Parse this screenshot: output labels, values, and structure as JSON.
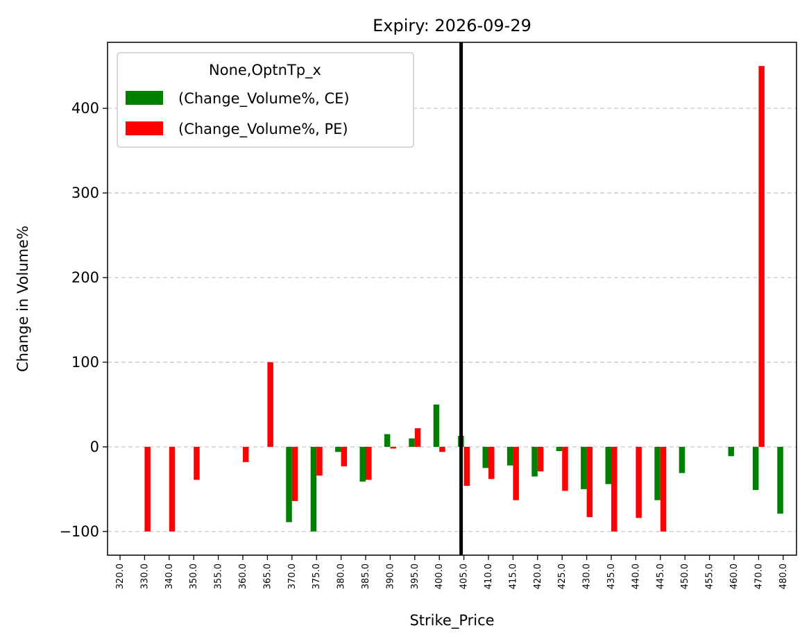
{
  "chart_data": {
    "type": "bar",
    "title": "Expiry: 2026-09-29",
    "xlabel": "Strike_Price",
    "ylabel": "Change in Volume%",
    "ylim": [
      -128,
      478
    ],
    "yticks": [
      -100,
      0,
      100,
      200,
      300,
      400
    ],
    "ytick_labels": [
      "−100",
      "0",
      "100",
      "200",
      "300",
      "400"
    ],
    "grid": "horizontal dashed",
    "legend_position": "top-left",
    "legend_title": "None,OptnTp_x",
    "marker_line": {
      "category": "405.0",
      "color": "#000000"
    },
    "categories": [
      "320.0",
      "330.0",
      "340.0",
      "350.0",
      "355.0",
      "360.0",
      "365.0",
      "370.0",
      "375.0",
      "380.0",
      "385.0",
      "390.0",
      "395.0",
      "400.0",
      "405.0",
      "410.0",
      "415.0",
      "420.0",
      "425.0",
      "430.0",
      "435.0",
      "440.0",
      "445.0",
      "450.0",
      "455.0",
      "460.0",
      "470.0",
      "480.0"
    ],
    "series": [
      {
        "name": "(Change_Volume%, CE)",
        "color": "#008000",
        "values": [
          0,
          0,
          0,
          0,
          0,
          0,
          0,
          -89,
          -100,
          -6,
          -41,
          15,
          10,
          50,
          13,
          -25,
          -22,
          -35,
          -5,
          -50,
          -44,
          0,
          -63,
          -31,
          0,
          -11,
          -51,
          -79
        ]
      },
      {
        "name": "(Change_Volume%, PE)",
        "color": "#ff0000",
        "values": [
          0,
          -100,
          -100,
          -39,
          0,
          -18,
          100,
          -64,
          -34,
          -23,
          -39,
          -2,
          22,
          -6,
          -46,
          -38,
          -63,
          -29,
          -52,
          -83,
          -100,
          -84,
          -100,
          0,
          0,
          0,
          450,
          0
        ]
      }
    ]
  }
}
